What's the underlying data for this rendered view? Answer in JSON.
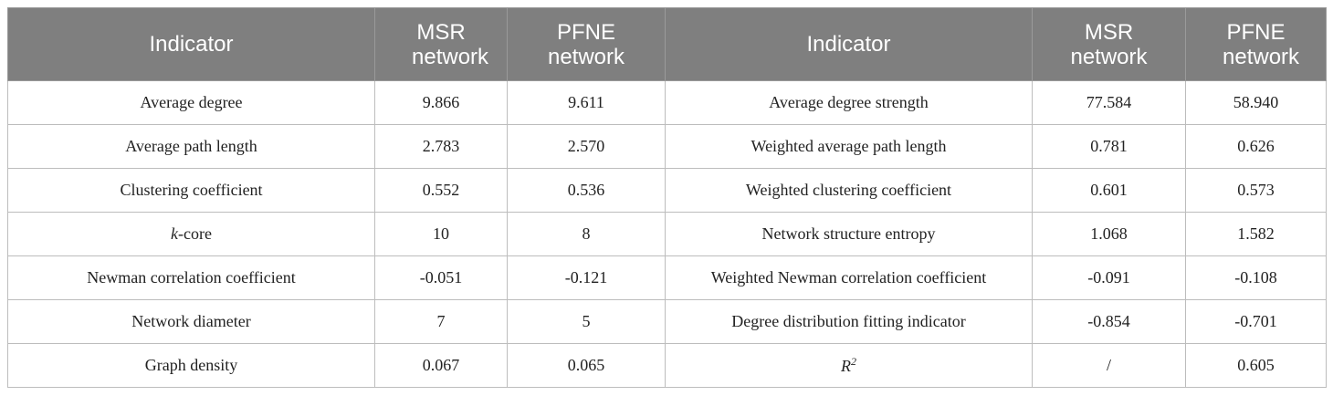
{
  "table": {
    "header": [
      "Indicator",
      "MSR network",
      "PFNE network",
      "Indicator",
      "MSR network",
      "PFNE network"
    ],
    "rows": [
      [
        "Average degree",
        "9.866",
        "9.611",
        "Average degree strength",
        "77.584",
        "58.940"
      ],
      [
        "Average path length",
        "2.783",
        "2.570",
        "Weighted average path length",
        "0.781",
        "0.626"
      ],
      [
        "Clustering coefficient",
        "0.552",
        "0.536",
        "Weighted clustering coefficient",
        "0.601",
        "0.573"
      ],
      [
        {
          "parts": [
            {
              "text": "k",
              "style": "italic"
            },
            {
              "text": "-core",
              "style": "normal"
            }
          ]
        },
        "10",
        "8",
        "Network structure entropy",
        "1.068",
        "1.582"
      ],
      [
        "Newman correlation coefficient",
        "-0.051",
        "-0.121",
        "Weighted Newman correlation coefficient",
        "-0.091",
        "-0.108"
      ],
      [
        "Network diameter",
        "7",
        "5",
        "Degree distribution fitting indicator",
        "-0.854",
        "-0.701"
      ],
      [
        "Graph density",
        "0.067",
        "0.065",
        {
          "parts": [
            {
              "text": "R",
              "style": "italic"
            },
            {
              "text": "2",
              "style": "superscript"
            }
          ]
        },
        "/",
        "0.605"
      ]
    ]
  }
}
